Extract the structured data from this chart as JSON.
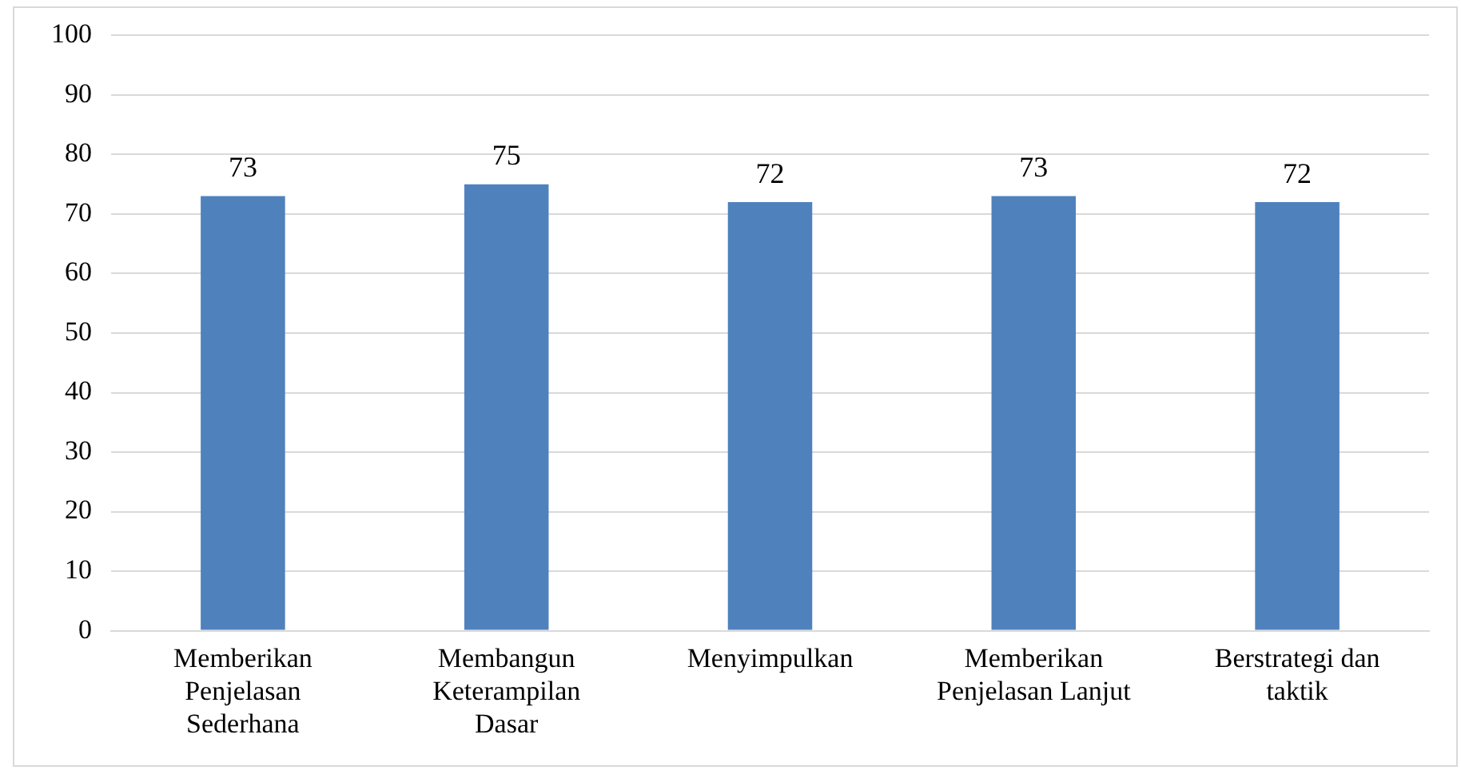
{
  "chart_data": {
    "type": "bar",
    "categories": [
      "Memberikan Penjelasan Sederhana",
      "Membangun Keterampilan Dasar",
      "Menyimpulkan",
      "Memberikan Penjelasan Lanjut",
      "Berstrategi dan taktik"
    ],
    "values": [
      73,
      75,
      72,
      73,
      72
    ],
    "color": "#4f81bd",
    "ylim": [
      0,
      100
    ],
    "yticks": [
      0,
      10,
      20,
      30,
      40,
      50,
      60,
      70,
      80,
      90,
      100
    ],
    "grid": "y",
    "data_labels": true
  }
}
